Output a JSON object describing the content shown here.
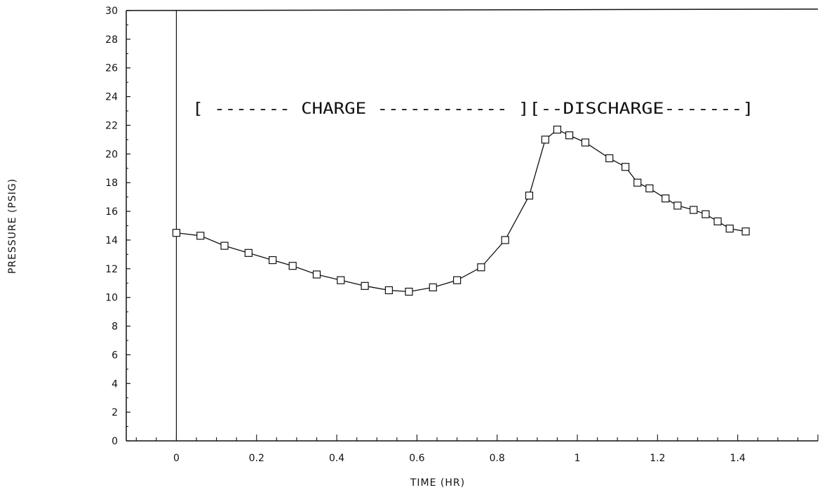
{
  "chart_data": {
    "type": "line",
    "xlabel": "TIME (HR)",
    "ylabel": "PRESSURE (PSIG)",
    "xlim": [
      -0.125,
      1.6
    ],
    "ylim": [
      0,
      30
    ],
    "x_ticks": [
      0,
      0.2,
      0.4,
      0.6,
      0.8,
      1,
      1.2,
      1.4
    ],
    "x_tick_labels": [
      "0",
      "0.2",
      "0.4",
      "0.6",
      "0.8",
      "1",
      "1.2",
      "1.4"
    ],
    "y_ticks": [
      0,
      2,
      4,
      6,
      8,
      10,
      12,
      14,
      16,
      18,
      20,
      22,
      24,
      26,
      28,
      30
    ],
    "y_tick_labels": [
      "0",
      "2",
      "4",
      "6",
      "8",
      "10",
      "12",
      "14",
      "16",
      "18",
      "20",
      "22",
      "24",
      "26",
      "28",
      "30"
    ],
    "grid": false,
    "annotations": [
      {
        "text": "[ ------- CHARGE ------------ ]",
        "x_start": 0.04,
        "x_end": 0.88,
        "y": 23.2
      },
      {
        "text": "[--DISCHARGE-------]",
        "x_start": 0.88,
        "x_end": 1.44,
        "y": 23.2
      }
    ],
    "series": [
      {
        "marker": "square",
        "color": "#111111",
        "x": [
          0,
          0.06,
          0.12,
          0.18,
          0.24,
          0.29,
          0.35,
          0.41,
          0.47,
          0.53,
          0.58,
          0.64,
          0.7,
          0.76,
          0.82,
          0.88,
          0.92,
          0.95,
          0.98,
          1.02,
          1.08,
          1.12,
          1.15,
          1.18,
          1.22,
          1.25,
          1.29,
          1.32,
          1.35,
          1.38,
          1.42
        ],
        "y": [
          14.5,
          14.3,
          13.6,
          13.1,
          12.6,
          12.2,
          11.6,
          11.2,
          10.8,
          10.5,
          10.4,
          10.7,
          11.2,
          12.1,
          14.0,
          17.1,
          21.0,
          21.7,
          21.3,
          20.8,
          19.7,
          19.1,
          18.0,
          17.6,
          16.9,
          16.4,
          16.1,
          15.8,
          15.3,
          14.8,
          14.6
        ]
      }
    ]
  }
}
